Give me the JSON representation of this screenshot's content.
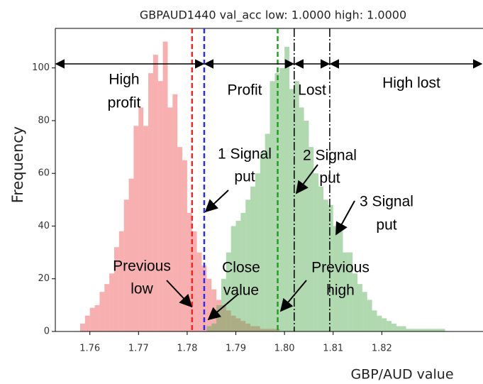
{
  "chart_data": {
    "type": "histogram",
    "title": "GBPAUD1440 val_acc low: 1.0000 high: 1.0000",
    "x_label": "GBP/AUD value",
    "y_label": "Frequency",
    "xlim": [
      1.7529,
      1.8408
    ],
    "ylim": [
      0,
      115
    ],
    "xticks": [
      {
        "value": 1.76,
        "label": "1.76"
      },
      {
        "value": 1.77,
        "label": "1.77"
      },
      {
        "value": 1.78,
        "label": "1.78"
      },
      {
        "value": 1.79,
        "label": "1.79"
      },
      {
        "value": 1.8,
        "label": "1.80"
      },
      {
        "value": 1.81,
        "label": "1.81"
      },
      {
        "value": 1.82,
        "label": "1.82"
      }
    ],
    "yticks": [
      0,
      20,
      40,
      60,
      80,
      100
    ],
    "series": [
      {
        "color": "#f06060",
        "bins": [
          1.758,
          1.759,
          1.76,
          1.761,
          1.762,
          1.763,
          1.764,
          1.765,
          1.766,
          1.767,
          1.768,
          1.769,
          1.77,
          1.771,
          1.772,
          1.773,
          1.774,
          1.775,
          1.776,
          1.777,
          1.778,
          1.779,
          1.78,
          1.781,
          1.782,
          1.783,
          1.784,
          1.785,
          1.786,
          1.787,
          1.788,
          1.789,
          1.79,
          1.791,
          1.792,
          1.793,
          1.794,
          1.795,
          1.796,
          1.797,
          1.798,
          1.799
        ],
        "values": [
          3,
          6,
          9,
          10,
          15,
          18,
          22,
          32,
          38,
          50,
          58,
          78,
          85,
          78,
          98,
          105,
          95,
          110,
          85,
          90,
          70,
          65,
          45,
          38,
          30,
          25,
          20,
          16,
          12,
          10,
          8,
          6,
          5,
          4,
          3,
          2,
          2,
          1,
          1,
          1,
          1
        ]
      },
      {
        "color": "#50aa50",
        "bins": [
          1.784,
          1.785,
          1.786,
          1.787,
          1.788,
          1.789,
          1.79,
          1.791,
          1.792,
          1.793,
          1.794,
          1.795,
          1.796,
          1.797,
          1.798,
          1.799,
          1.8,
          1.801,
          1.802,
          1.803,
          1.804,
          1.805,
          1.806,
          1.807,
          1.808,
          1.809,
          1.81,
          1.811,
          1.812,
          1.813,
          1.814,
          1.815,
          1.816,
          1.817,
          1.818,
          1.819,
          1.82,
          1.821,
          1.822,
          1.823,
          1.824,
          1.825,
          1.826,
          1.827,
          1.828,
          1.829,
          1.83,
          1.831,
          1.832,
          1.833
        ],
        "values": [
          2,
          3,
          10,
          20,
          30,
          40,
          42,
          45,
          50,
          55,
          60,
          68,
          75,
          95,
          98,
          100,
          108,
          92,
          95,
          85,
          80,
          70,
          60,
          55,
          50,
          48,
          40,
          38,
          30,
          30,
          22,
          18,
          15,
          12,
          8,
          6,
          5,
          4,
          3,
          2,
          2,
          1,
          1,
          1,
          1,
          1,
          1,
          1,
          1
        ]
      }
    ],
    "vlines": [
      {
        "x": 1.781,
        "color": "#ff2222",
        "style": "dashed"
      },
      {
        "x": 1.7835,
        "color": "#2b2bff",
        "style": "dashed"
      },
      {
        "x": 1.7986,
        "color": "#22a022",
        "style": "dashed"
      },
      {
        "x": 1.802,
        "color": "#000000",
        "style": "dashdot"
      },
      {
        "x": 1.8093,
        "color": "#000000",
        "style": "dashdot"
      }
    ],
    "annotations": [
      {
        "lines": [
          "High",
          "profit"
        ]
      },
      {
        "lines": [
          "Profit"
        ]
      },
      {
        "lines": [
          "Lost"
        ]
      },
      {
        "lines": [
          "High lost"
        ]
      },
      {
        "lines": [
          "1 Signal",
          "put"
        ]
      },
      {
        "lines": [
          "2 Signal",
          "put"
        ]
      },
      {
        "lines": [
          "3 Signal",
          "put"
        ]
      },
      {
        "lines": [
          "Previous",
          "low"
        ]
      },
      {
        "lines": [
          "Close",
          "value"
        ]
      },
      {
        "lines": [
          "Previous",
          "high"
        ]
      }
    ]
  }
}
